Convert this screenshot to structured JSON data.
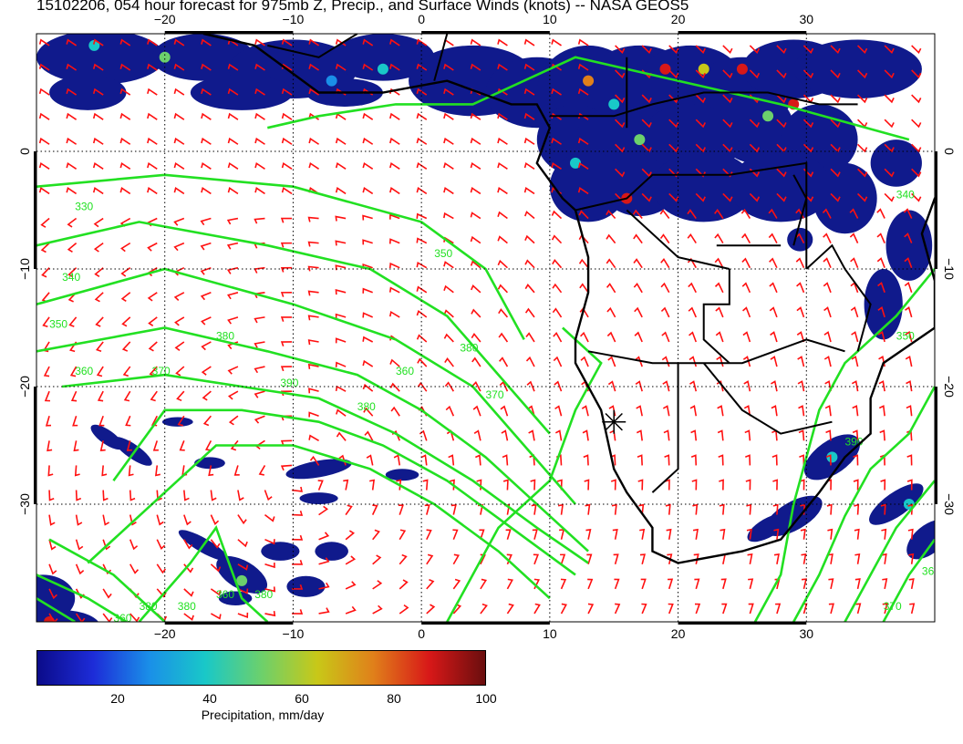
{
  "title": "15102206, 054 hour forecast for 975mb Z, Precip., and Surface Winds (knots) -- NASA GEOS5",
  "map": {
    "lon_range": [
      -30,
      40
    ],
    "lat_range": [
      -40,
      10
    ],
    "lon_tick_labels": [
      {
        "lon": -20,
        "text": "−20"
      },
      {
        "lon": -10,
        "text": "−10"
      },
      {
        "lon": 0,
        "text": "0"
      },
      {
        "lon": 10,
        "text": "10"
      },
      {
        "lon": 20,
        "text": "20"
      },
      {
        "lon": 30,
        "text": "30"
      }
    ],
    "lat_tick_labels": [
      {
        "lat": 0,
        "text": "0"
      },
      {
        "lat": -10,
        "text": "−10"
      },
      {
        "lat": -20,
        "text": "−20"
      },
      {
        "lat": -30,
        "text": "−30"
      }
    ],
    "gridlines": "dotted",
    "contour_labels": [
      "330",
      "340",
      "350",
      "360",
      "370",
      "380",
      "390",
      "380",
      "360",
      "350",
      "380",
      "370",
      "390",
      "330",
      "340",
      "350",
      "380",
      "360",
      "380",
      "360",
      "380",
      "360",
      "370"
    ],
    "marker": {
      "symbol": "asterisk",
      "lon": 15,
      "lat": -23
    }
  },
  "colorbar": {
    "labels": [
      "20",
      "40",
      "60",
      "80",
      "100"
    ],
    "title": "Precipitation, mm/day",
    "colors": [
      "#0b0b8a",
      "#1d2cd8",
      "#1a8fe8",
      "#19c8c8",
      "#6cd06c",
      "#c8c818",
      "#e0801a",
      "#d81818",
      "#6a0e0e"
    ]
  },
  "colors": {
    "contour": "#22e022",
    "wind_barb": "#ff1010",
    "precip_base": "#101a8c",
    "coastline": "#000000"
  }
}
